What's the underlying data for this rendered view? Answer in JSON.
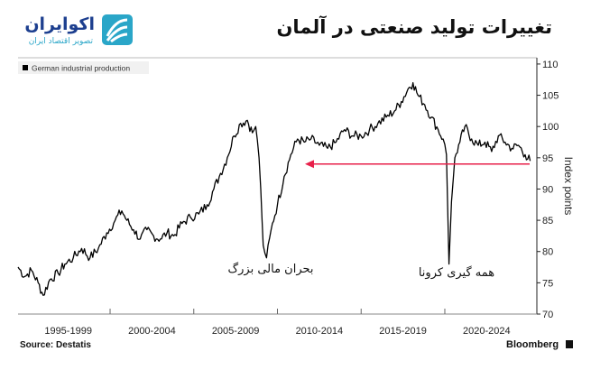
{
  "header": {
    "title": "تغییرات تولید صنعتی در آلمان",
    "brand_name": "اکوایران",
    "brand_sub": "تصویر اقتصاد ایران"
  },
  "annotations": {
    "crisis": "بحران مالی بزرگ",
    "covid": "همه گیری کرونا"
  },
  "footer": {
    "source": "Source:  Destatis",
    "brand": "Bloomberg"
  },
  "colors": {
    "line": "#000000",
    "arrow": "#e8204a",
    "logo": "#2aa6c8",
    "brand": "#1d3f8f"
  },
  "chart_data": {
    "type": "line",
    "title": "",
    "xlabel": "",
    "ylabel": "Index points",
    "ylim": [
      70,
      111
    ],
    "y_ticks": [
      70,
      75,
      80,
      85,
      90,
      95,
      100,
      105,
      110
    ],
    "x_range": [
      1994.5,
      2025.5
    ],
    "x_categories": [
      "1995-1999",
      "2000-2004",
      "2005-2009",
      "2010-2014",
      "2015-2019",
      "2020-2024"
    ],
    "legend": "top-left",
    "grid": false,
    "series": [
      {
        "name": "German industrial production",
        "x": [
          1994.5,
          1994.9,
          1995.3,
          1995.7,
          1996.0,
          1996.4,
          1996.9,
          1997.3,
          1997.8,
          1998.3,
          1998.8,
          1999.3,
          1999.8,
          2000.3,
          2000.7,
          2001.0,
          2001.4,
          2001.8,
          2002.2,
          2002.6,
          2003.0,
          2003.4,
          2003.8,
          2004.3,
          2004.8,
          2005.3,
          2005.8,
          2006.2,
          2006.6,
          2007.0,
          2007.4,
          2007.8,
          2008.2,
          2008.5,
          2008.7,
          2008.9,
          2009.0,
          2009.15,
          2009.35,
          2009.7,
          2010.0,
          2010.4,
          2010.8,
          2011.2,
          2011.6,
          2012.0,
          2012.5,
          2013.0,
          2013.5,
          2014.0,
          2014.5,
          2015.0,
          2015.5,
          2016.0,
          2016.5,
          2017.0,
          2017.4,
          2017.8,
          2018.1,
          2018.4,
          2018.8,
          2019.2,
          2019.6,
          2019.9,
          2020.1,
          2020.25,
          2020.4,
          2020.6,
          2020.9,
          2021.2,
          2021.6,
          2022.0,
          2022.4,
          2022.8,
          2023.2,
          2023.6,
          2024.0,
          2024.4,
          2024.8,
          2025.1
        ],
        "y": [
          77.5,
          76.0,
          77.0,
          75.0,
          73.0,
          75.5,
          76.5,
          78.0,
          79.0,
          80.5,
          79.0,
          80.5,
          83.0,
          85.0,
          86.5,
          85.0,
          83.5,
          82.0,
          83.5,
          82.5,
          82.0,
          83.0,
          82.5,
          84.5,
          85.5,
          86.0,
          87.5,
          90.0,
          92.5,
          95.0,
          98.5,
          100.5,
          101.0,
          99.0,
          100.0,
          95.0,
          90.0,
          81.0,
          79.0,
          84.5,
          87.5,
          92.0,
          95.5,
          98.0,
          97.5,
          98.0,
          97.0,
          96.5,
          97.5,
          99.5,
          98.5,
          98.5,
          99.5,
          100.5,
          101.5,
          102.5,
          104.0,
          106.0,
          107.0,
          105.0,
          103.5,
          101.5,
          99.5,
          98.0,
          95.5,
          78.0,
          88.0,
          95.0,
          97.5,
          100.0,
          98.0,
          97.0,
          97.5,
          96.0,
          98.5,
          97.5,
          96.5,
          97.0,
          95.5,
          94.5
        ]
      }
    ],
    "arrow_level": 94
  }
}
